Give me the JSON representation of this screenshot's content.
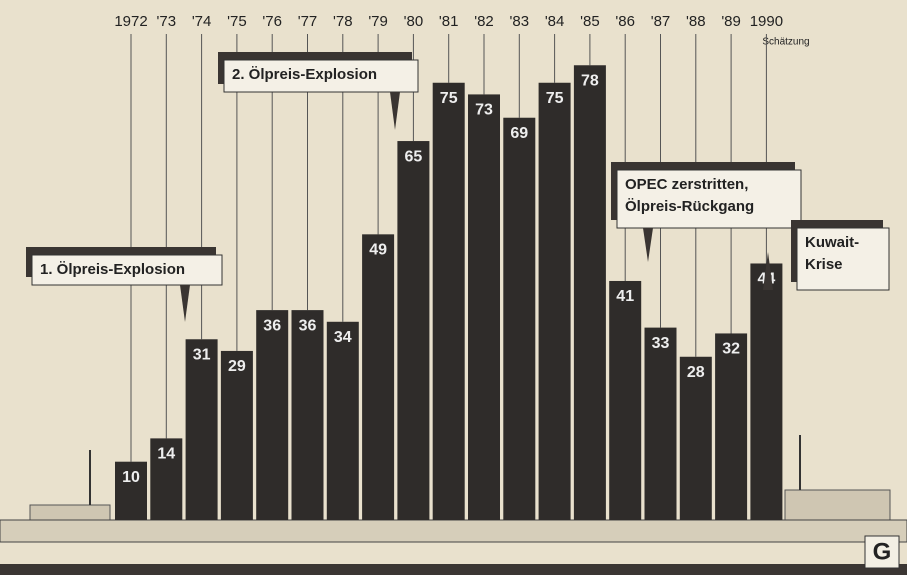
{
  "chart_data": {
    "type": "bar",
    "categories": [
      "1972",
      "'73",
      "'74",
      "'75",
      "'76",
      "'77",
      "'78",
      "'79",
      "'80",
      "'81",
      "'82",
      "'83",
      "'84",
      "'85",
      "'86",
      "'87",
      "'88",
      "'89",
      "1990"
    ],
    "values": [
      10,
      14,
      31,
      29,
      36,
      36,
      34,
      49,
      65,
      75,
      73,
      69,
      75,
      78,
      41,
      33,
      28,
      32,
      44
    ],
    "color": "#2f2c2a",
    "annotations": [
      {
        "lines": [
          "1. Ölpreis-Explosion"
        ]
      },
      {
        "lines": [
          "2. Ölpreis-Explosion"
        ]
      },
      {
        "lines": [
          "OPEC zerstritten,",
          "Ölpreis-Rückgang"
        ]
      },
      {
        "lines": [
          "Kuwait-",
          "Krise"
        ]
      }
    ],
    "note": "Schätzung",
    "logo": "G"
  }
}
